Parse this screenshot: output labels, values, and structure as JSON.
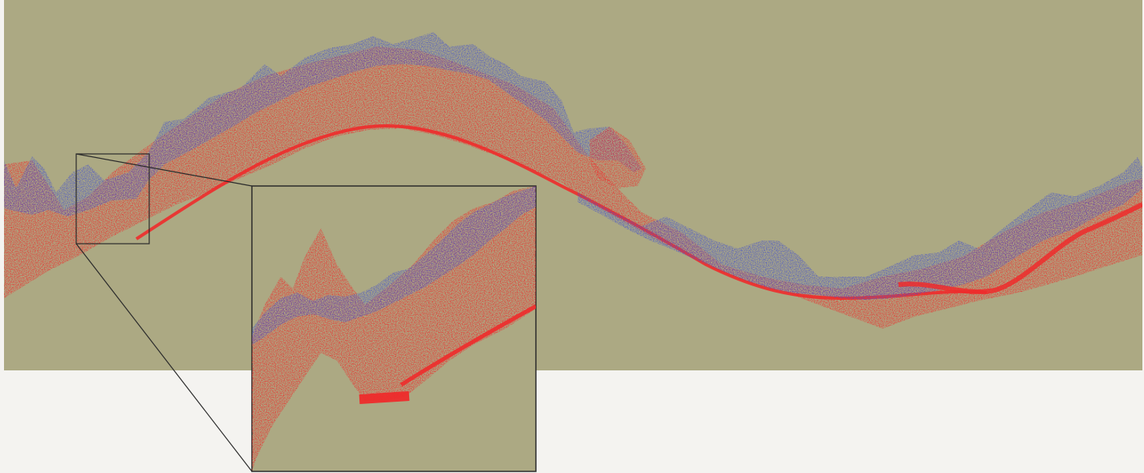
{
  "figure": {
    "background_color": "#f4f3f0",
    "panel_color": "#aca983",
    "surface_colors": {
      "upper_layer": "#4b56c8",
      "lower_layer": "#ee2b2b",
      "outline": "#2b2b2b"
    },
    "description_labels": {
      "main_view": "main-terrain-panel",
      "zoom_region": "zoom-source-box",
      "zoom_view": "zoom-inset-panel"
    }
  }
}
